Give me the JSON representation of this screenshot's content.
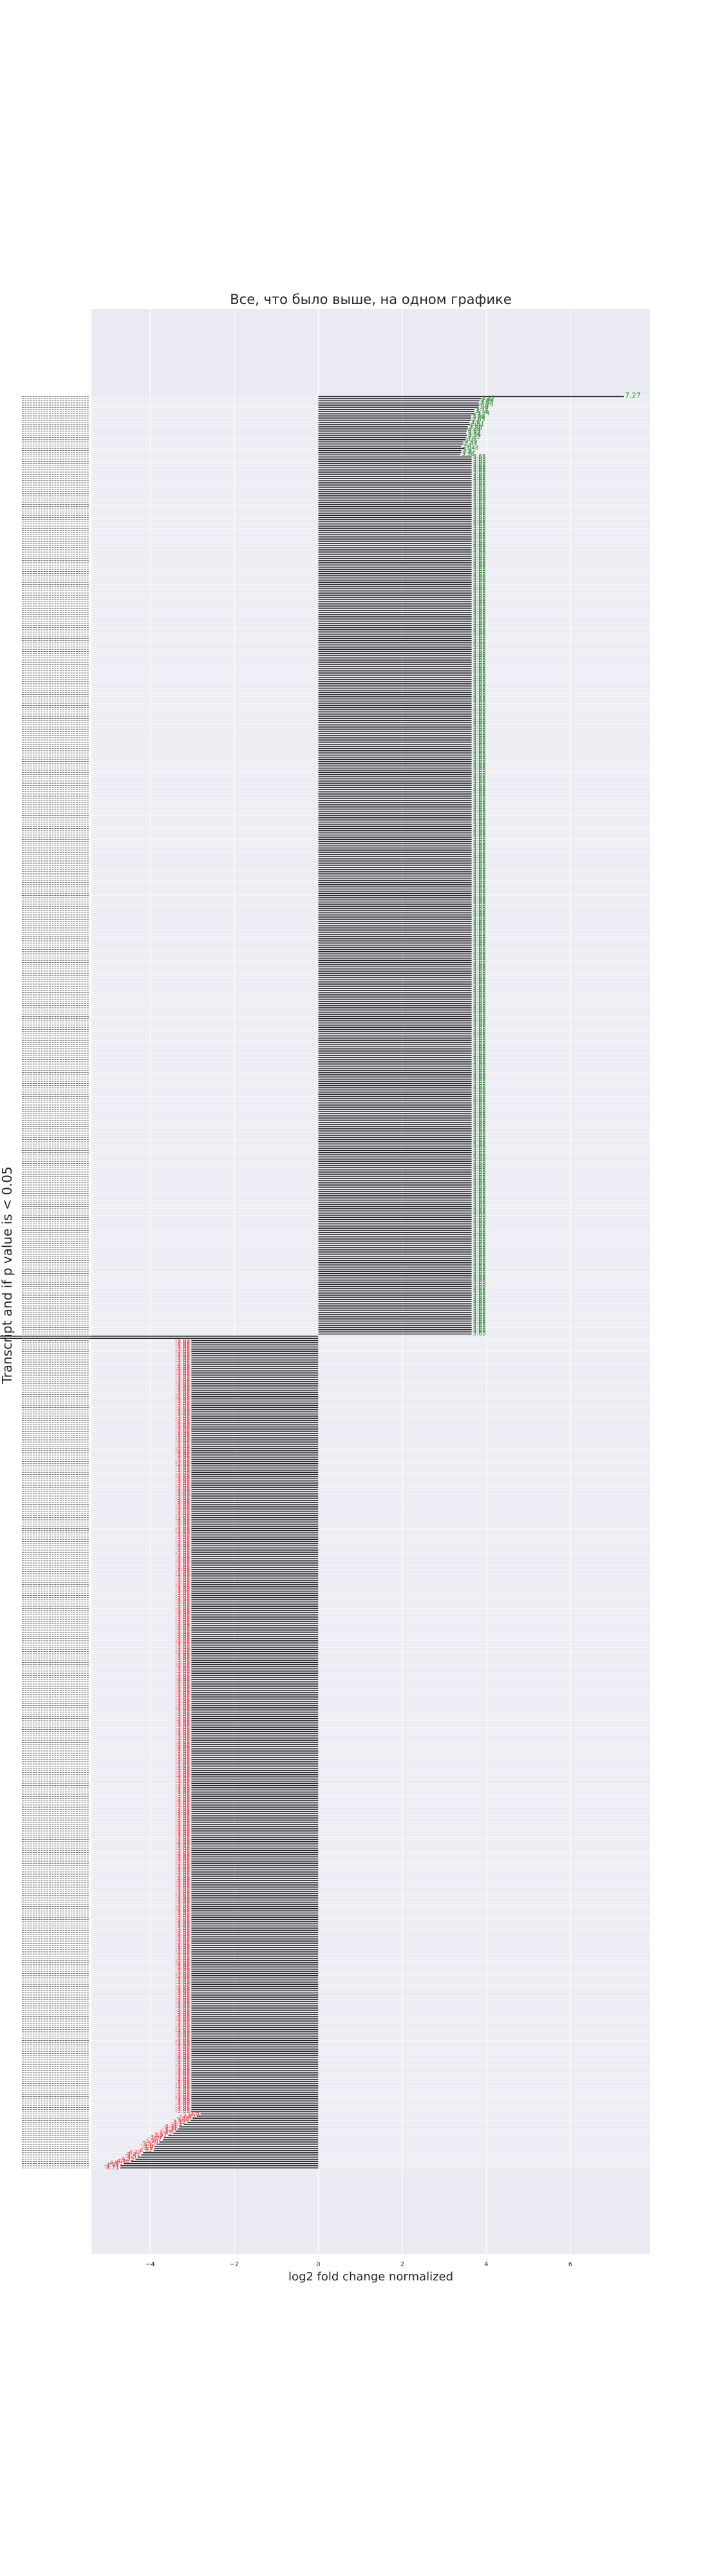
{
  "chart_data": {
    "type": "bar",
    "orientation": "horizontal",
    "title": "Все, что было выше, на одном графике",
    "xlabel": "log2 fold change normalized",
    "ylabel": "Transcript and if p value is < 0.05",
    "xlim": [
      -5.4,
      7.9
    ],
    "xticks": [
      -4,
      -2,
      0,
      2,
      4,
      6
    ],
    "grid": true,
    "n_positive": 436,
    "n_negative": 385,
    "max_value": 7.27,
    "min_value": -4.71,
    "positive_labeled_values": [
      7.27,
      3.87,
      3.84,
      3.82,
      3.83,
      3.8,
      3.72,
      3.71,
      3.74,
      3.64,
      3.64,
      3.63,
      3.6,
      3.61,
      3.56,
      3.56,
      3.53,
      3.52,
      3.54,
      3.52,
      3.5,
      3.45,
      3.44,
      3.4,
      3.48,
      3.41,
      3.4,
      3.38
    ],
    "negative_labeled_values": [
      -4.71,
      -4.71,
      -4.63,
      -4.46,
      -4.35,
      -4.3,
      -4.21,
      -4.17,
      -3.92,
      -3.9,
      -3.9,
      -3.85,
      -3.78,
      -3.7,
      -3.67,
      -3.57,
      -3.45,
      -3.4,
      -3.34,
      -3.31,
      -3.2,
      -3.12,
      -3.04,
      -2.99,
      -2.89,
      -2.8
    ],
    "colors": {
      "positive_label": "#2e8b2e",
      "negative_label": "#e8383d",
      "bar": "#262626",
      "background": "#eaeaf2",
      "grid": "#ffffff"
    }
  }
}
